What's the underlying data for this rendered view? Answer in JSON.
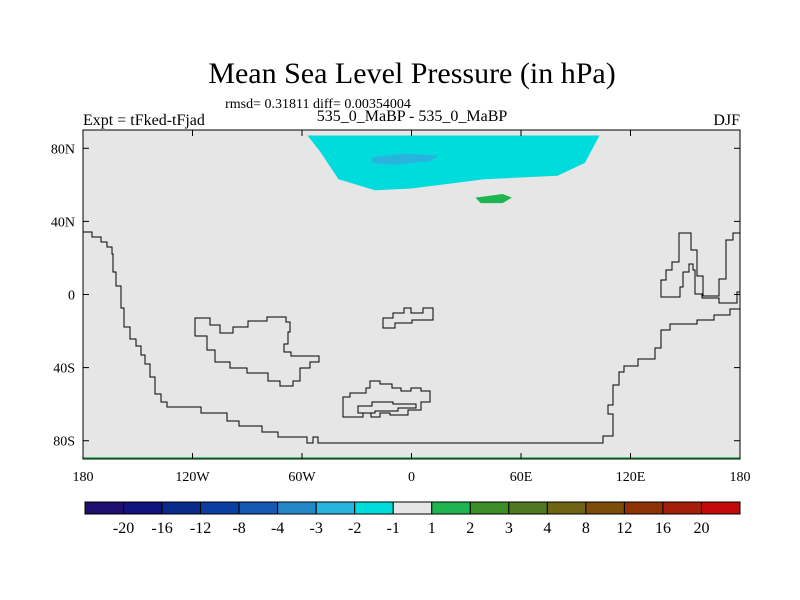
{
  "chart_data": {
    "type": "heatmap",
    "title": "Mean Sea Level Pressure (in hPa)",
    "stats_line": "rmsd= 0.31811 diff= 0.00354004",
    "left_label": "Expt = tFked-tFjad",
    "center_label": "535_0_MaBP - 535_0_MaBP",
    "right_label": "DJF",
    "x_ticks": [
      "180",
      "120W",
      "60W",
      "0",
      "60E",
      "120E",
      "180"
    ],
    "x_tick_values": [
      -180,
      -120,
      -60,
      0,
      60,
      120,
      180
    ],
    "y_ticks": [
      "80N",
      "40N",
      "0",
      "40S",
      "80S"
    ],
    "y_tick_values": [
      80,
      40,
      0,
      -40,
      -80
    ],
    "xlim": [
      -180,
      180
    ],
    "ylim": [
      -90,
      90
    ],
    "colorbar": {
      "colors": [
        "#1e0f6e",
        "#12127c",
        "#0a2a8c",
        "#0a3ea0",
        "#1359b4",
        "#2387c8",
        "#28b4dc",
        "#00dcdc",
        "#e6e6e6",
        "#1eb450",
        "#3c8c28",
        "#50781e",
        "#6e6414",
        "#7d4b0a",
        "#8c3205",
        "#a51e0a",
        "#c30a0a"
      ],
      "labels": [
        "-20",
        "-16",
        "-12",
        "-8",
        "-4",
        "-3",
        "-2",
        "-1",
        "1",
        "2",
        "3",
        "4",
        "8",
        "12",
        "16",
        "20"
      ]
    },
    "regions": [
      {
        "level": "-2 to -1",
        "color": "#00dcdc",
        "description_points": [
          [
            -57,
            87
          ],
          [
            103,
            87
          ],
          [
            95,
            72
          ],
          [
            80,
            65
          ],
          [
            40,
            63
          ],
          [
            0,
            58
          ],
          [
            -20,
            57
          ],
          [
            -40,
            63
          ],
          [
            -50,
            78
          ]
        ]
      },
      {
        "level": "-3 to -2",
        "color": "#28b4dc",
        "description_points": [
          [
            -22,
            75
          ],
          [
            -5,
            77
          ],
          [
            15,
            76
          ],
          [
            10,
            73
          ],
          [
            -10,
            71
          ],
          [
            -22,
            72
          ]
        ]
      },
      {
        "level": "1 to 2",
        "color": "#1eb450",
        "description_points": [
          [
            35,
            53
          ],
          [
            50,
            55
          ],
          [
            55,
            53
          ],
          [
            50,
            50
          ],
          [
            38,
            50
          ]
        ]
      },
      {
        "level": "1 to 2",
        "color": "#1eb450",
        "description_points": [
          [
            -180,
            -89
          ],
          [
            180,
            -89
          ],
          [
            180,
            -90
          ],
          [
            -180,
            -90
          ]
        ]
      }
    ],
    "background_level": "-1 to 1"
  }
}
